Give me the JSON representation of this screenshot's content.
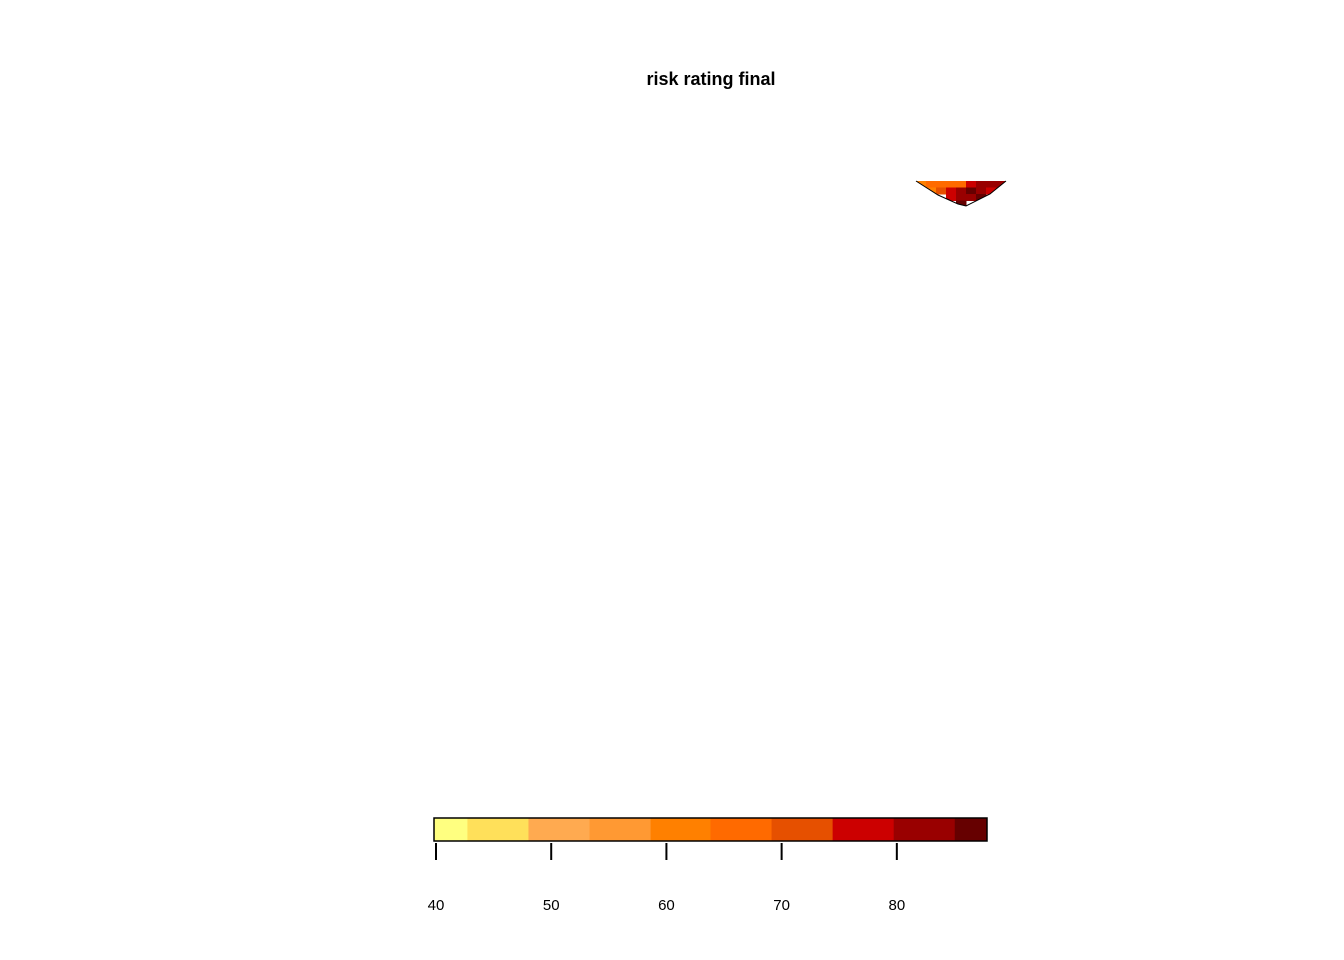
{
  "chart_data": {
    "type": "heatmap",
    "title": "risk rating final",
    "xlabel": "",
    "ylabel": "",
    "legend": {
      "position": "bottom",
      "range": [
        40,
        88
      ],
      "breaks": [
        40,
        42.9,
        48.2,
        53.5,
        58.8,
        64.0,
        69.3,
        74.6,
        79.9,
        85.2,
        88
      ],
      "colors": [
        "#FFFF80",
        "#FFE05A",
        "#FFAA50",
        "#FF9933",
        "#FF8000",
        "#FF6A00",
        "#E65000",
        "#CC0000",
        "#990000",
        "#660000"
      ],
      "ticks": [
        40,
        50,
        60,
        70,
        80
      ],
      "tick_labels": [
        "40",
        "50",
        "60",
        "70",
        "80"
      ]
    },
    "raster": {
      "description_values": "high risk values (approximately 60-88) concentrated in one small region near the top-right",
      "cells": [
        {
          "col": 0,
          "row": 0,
          "value": 62
        },
        {
          "col": 1,
          "row": 0,
          "value": 64
        },
        {
          "col": 2,
          "row": 0,
          "value": 66
        },
        {
          "col": 3,
          "row": 0,
          "value": 64
        },
        {
          "col": 4,
          "row": 0,
          "value": 68
        },
        {
          "col": 5,
          "row": 0,
          "value": 78
        },
        {
          "col": 6,
          "row": 0,
          "value": 82
        },
        {
          "col": 7,
          "row": 0,
          "value": 84
        },
        {
          "col": 8,
          "row": 0,
          "value": 80
        },
        {
          "col": 1,
          "row": 1,
          "value": 60
        },
        {
          "col": 2,
          "row": 1,
          "value": 70
        },
        {
          "col": 3,
          "row": 1,
          "value": 76
        },
        {
          "col": 4,
          "row": 1,
          "value": 80
        },
        {
          "col": 5,
          "row": 1,
          "value": 86
        },
        {
          "col": 6,
          "row": 1,
          "value": 82
        },
        {
          "col": 7,
          "row": 1,
          "value": 78
        },
        {
          "col": 3,
          "row": 2,
          "value": 78
        },
        {
          "col": 4,
          "row": 2,
          "value": 84
        },
        {
          "col": 5,
          "row": 2,
          "value": 80
        },
        {
          "col": 6,
          "row": 2,
          "value": 86
        },
        {
          "col": 4,
          "row": 3,
          "value": 88
        }
      ]
    }
  }
}
